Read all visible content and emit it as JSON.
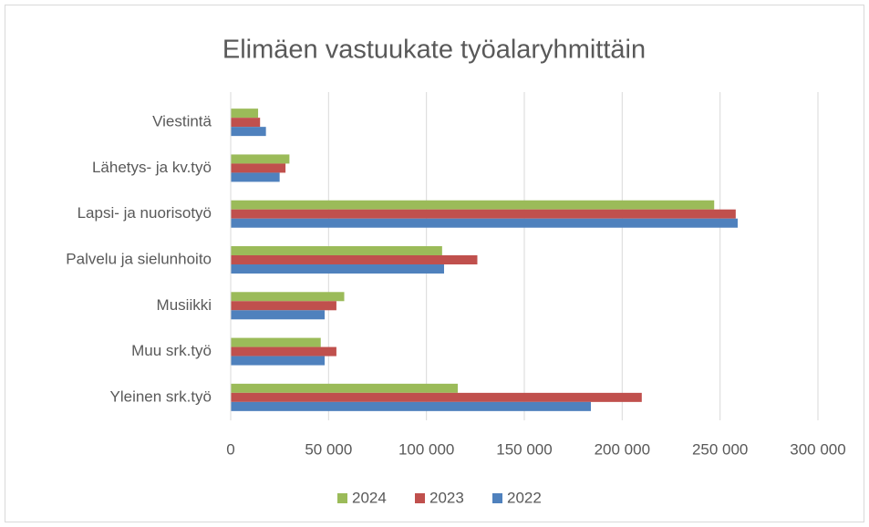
{
  "chart_data": {
    "type": "bar",
    "orientation": "horizontal",
    "title": "Elimäen vastuukate työalaryhmittäin",
    "categories": [
      "Yleinen srk.työ",
      "Muu srk.työ",
      "Musiikki",
      "Palvelu ja sielunhoito",
      "Lapsi- ja nuorisotyö",
      "Lähetys- ja kv.työ",
      "Viestintä"
    ],
    "series": [
      {
        "name": "2024",
        "color": "#9bbb59",
        "values": [
          116000,
          46000,
          58000,
          108000,
          247000,
          30000,
          14000
        ]
      },
      {
        "name": "2023",
        "color": "#c0504d",
        "values": [
          210000,
          54000,
          54000,
          126000,
          258000,
          28000,
          15000
        ]
      },
      {
        "name": "2022",
        "color": "#4f81bd",
        "values": [
          184000,
          48000,
          48000,
          109000,
          259000,
          25000,
          18000
        ]
      }
    ],
    "xlim": [
      0,
      300000
    ],
    "xticks": [
      0,
      {
        "value": 50000,
        "label": "50 000"
      },
      {
        "value": 100000,
        "label": "100 000"
      },
      {
        "value": 150000,
        "label": "150 000"
      },
      {
        "value": 200000,
        "label": "200 000"
      },
      {
        "value": 250000,
        "label": "250 000"
      },
      {
        "value": 300000,
        "label": "300 000"
      }
    ],
    "grid": true,
    "legend": "bottom"
  }
}
